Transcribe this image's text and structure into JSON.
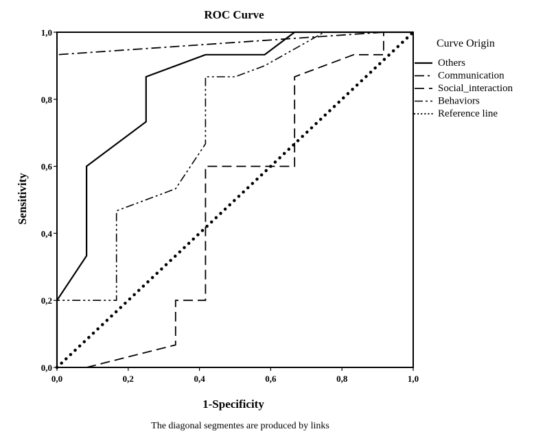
{
  "chart_data": {
    "type": "line",
    "title": "ROC Curve",
    "xlabel": "1-Specificity",
    "ylabel": "Sensitivity",
    "footnote": "The diagonal segmentes are produced by links",
    "xlim": [
      0,
      1
    ],
    "ylim": [
      0,
      1
    ],
    "x_ticks": [
      "0,0",
      "0,2",
      "0,4",
      "0,6",
      "0,8",
      "1,0"
    ],
    "y_ticks": [
      "0,0",
      "0,2",
      "0,4",
      "0,6",
      "0,8",
      "1,0"
    ],
    "grid": false,
    "legend_position": "right",
    "legend_title": "Curve Origin",
    "series": [
      {
        "name": "Others",
        "style": "solid",
        "points": [
          [
            0,
            0
          ],
          [
            0,
            0.2
          ],
          [
            0.083,
            0.333
          ],
          [
            0.083,
            0.6
          ],
          [
            0.25,
            0.733
          ],
          [
            0.25,
            0.867
          ],
          [
            0.417,
            0.933
          ],
          [
            0.583,
            0.933
          ],
          [
            0.667,
            1.0
          ],
          [
            1.0,
            1.0
          ]
        ]
      },
      {
        "name": "Communication",
        "style": "dashdot",
        "points": [
          [
            0,
            0
          ],
          [
            0,
            0.933
          ],
          [
            0.917,
            1.0
          ],
          [
            1.0,
            1.0
          ]
        ]
      },
      {
        "name": "Social_interaction",
        "style": "dash",
        "points": [
          [
            0.083,
            0
          ],
          [
            0.333,
            0.067
          ],
          [
            0.333,
            0.2
          ],
          [
            0.417,
            0.2
          ],
          [
            0.417,
            0.6
          ],
          [
            0.667,
            0.6
          ],
          [
            0.667,
            0.867
          ],
          [
            0.833,
            0.933
          ],
          [
            0.917,
            0.933
          ],
          [
            0.917,
            1.0
          ],
          [
            1.0,
            1.0
          ]
        ]
      },
      {
        "name": "Behaviors",
        "style": "dashdotdot",
        "points": [
          [
            0,
            0
          ],
          [
            0,
            0.2
          ],
          [
            0.167,
            0.2
          ],
          [
            0.167,
            0.467
          ],
          [
            0.333,
            0.533
          ],
          [
            0.417,
            0.667
          ],
          [
            0.417,
            0.867
          ],
          [
            0.5,
            0.867
          ],
          [
            0.583,
            0.9
          ],
          [
            0.75,
            1.0
          ],
          [
            1.0,
            1.0
          ]
        ]
      },
      {
        "name": "Reference line",
        "style": "dotted",
        "points": [
          [
            0,
            0
          ],
          [
            1,
            1
          ]
        ]
      }
    ]
  }
}
